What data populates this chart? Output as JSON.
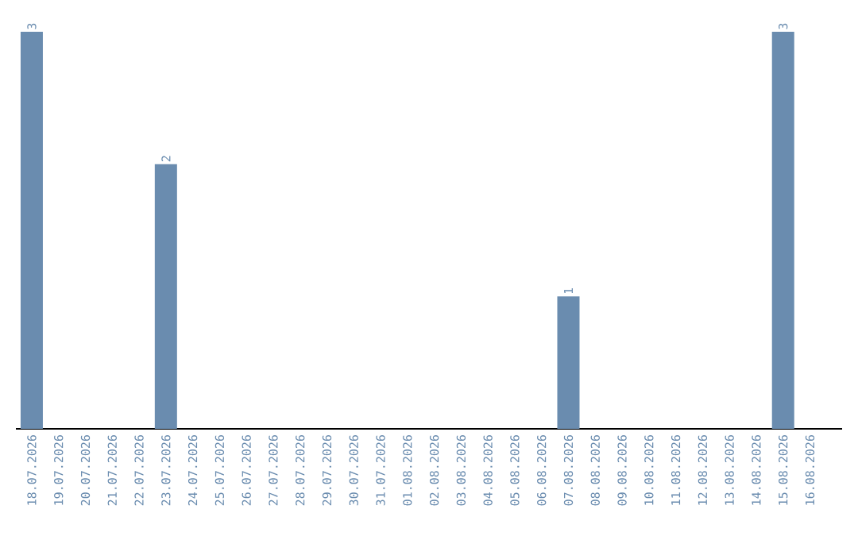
{
  "chart_data": {
    "type": "bar",
    "categories": [
      "18.07.2026",
      "19.07.2026",
      "20.07.2026",
      "21.07.2026",
      "22.07.2026",
      "23.07.2026",
      "24.07.2026",
      "25.07.2026",
      "26.07.2026",
      "27.07.2026",
      "28.07.2026",
      "29.07.2026",
      "30.07.2026",
      "31.07.2026",
      "01.08.2026",
      "02.08.2026",
      "03.08.2026",
      "04.08.2026",
      "05.08.2026",
      "06.08.2026",
      "07.08.2026",
      "08.08.2026",
      "09.08.2026",
      "10.08.2026",
      "11.08.2026",
      "12.08.2026",
      "13.08.2026",
      "14.08.2026",
      "15.08.2026",
      "16.08.2026"
    ],
    "values": [
      3,
      0,
      0,
      0,
      0,
      2,
      0,
      0,
      0,
      0,
      0,
      0,
      0,
      0,
      0,
      0,
      0,
      0,
      0,
      0,
      1,
      0,
      0,
      0,
      0,
      0,
      0,
      0,
      3,
      0
    ],
    "value_labels": [
      "3",
      null,
      null,
      null,
      null,
      "2",
      null,
      null,
      null,
      null,
      null,
      null,
      null,
      null,
      null,
      null,
      null,
      null,
      null,
      null,
      "1",
      null,
      null,
      null,
      null,
      null,
      null,
      null,
      "3",
      null
    ],
    "color": "#6a8caf",
    "tick_labels": "x"
  }
}
